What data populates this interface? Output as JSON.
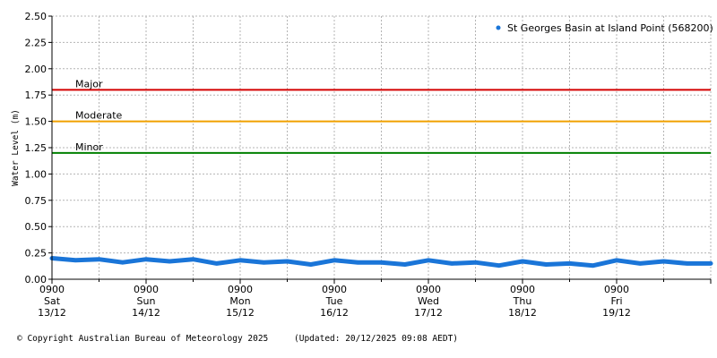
{
  "chart_data": {
    "type": "line",
    "ylabel": "Water Level (m)",
    "ylim": [
      0,
      2.5
    ],
    "yticks": [
      "0.00",
      "0.25",
      "0.50",
      "0.75",
      "1.00",
      "1.25",
      "1.50",
      "1.75",
      "2.00",
      "2.25",
      "2.50"
    ],
    "xlim": [
      "2025-12-13 09:00",
      "2025-12-20 09:00"
    ],
    "xticks": [
      {
        "time": "0900",
        "day": "Sat",
        "date": "13/12"
      },
      {
        "time": "0900",
        "day": "Sun",
        "date": "14/12"
      },
      {
        "time": "0900",
        "day": "Mon",
        "date": "15/12"
      },
      {
        "time": "0900",
        "day": "Tue",
        "date": "16/12"
      },
      {
        "time": "0900",
        "day": "Wed",
        "date": "17/12"
      },
      {
        "time": "0900",
        "day": "Thu",
        "date": "18/12"
      },
      {
        "time": "0900",
        "day": "Fri",
        "date": "19/12"
      }
    ],
    "grid": true,
    "legend_position": "top-right",
    "series": [
      {
        "name": "St Georges Basin at Island Point (568200)",
        "color": "#1a75d8",
        "x": [
          "2025-12-13 09:00",
          "2025-12-13 15:00",
          "2025-12-13 21:00",
          "2025-12-14 03:00",
          "2025-12-14 09:00",
          "2025-12-14 15:00",
          "2025-12-14 21:00",
          "2025-12-15 03:00",
          "2025-12-15 09:00",
          "2025-12-15 15:00",
          "2025-12-15 21:00",
          "2025-12-16 03:00",
          "2025-12-16 09:00",
          "2025-12-16 15:00",
          "2025-12-16 21:00",
          "2025-12-17 03:00",
          "2025-12-17 09:00",
          "2025-12-17 15:00",
          "2025-12-17 21:00",
          "2025-12-18 03:00",
          "2025-12-18 09:00",
          "2025-12-18 15:00",
          "2025-12-18 21:00",
          "2025-12-19 03:00",
          "2025-12-19 09:00",
          "2025-12-19 15:00",
          "2025-12-19 21:00",
          "2025-12-20 03:00",
          "2025-12-20 09:00"
        ],
        "y": [
          0.2,
          0.18,
          0.19,
          0.16,
          0.19,
          0.17,
          0.19,
          0.15,
          0.18,
          0.16,
          0.17,
          0.14,
          0.18,
          0.16,
          0.16,
          0.14,
          0.18,
          0.15,
          0.16,
          0.13,
          0.17,
          0.14,
          0.15,
          0.13,
          0.18,
          0.15,
          0.17,
          0.15,
          0.15
        ]
      }
    ],
    "thresholds": [
      {
        "label": "Major",
        "value": 1.8,
        "color": "#d40000"
      },
      {
        "label": "Moderate",
        "value": 1.5,
        "color": "#f0a000"
      },
      {
        "label": "Minor",
        "value": 1.2,
        "color": "#008000"
      }
    ]
  },
  "footer": {
    "copyright": "© Copyright Australian Bureau of Meteorology 2025",
    "updated": "(Updated: 20/12/2025 09:08 AEDT)"
  }
}
